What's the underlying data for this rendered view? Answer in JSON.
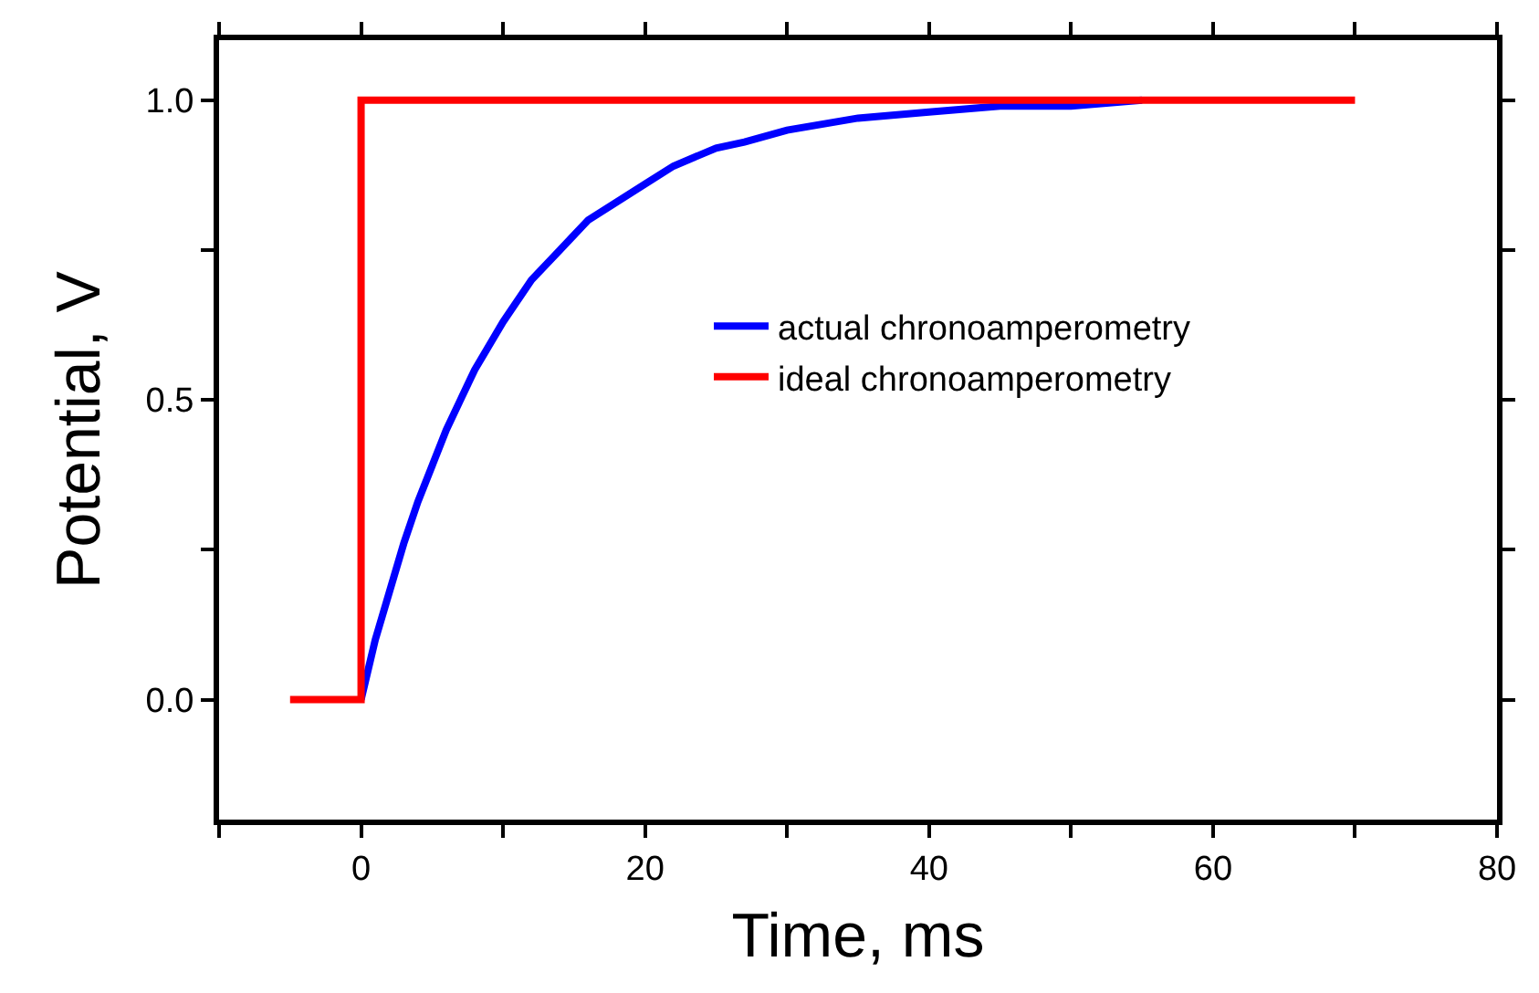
{
  "chart_data": {
    "type": "line",
    "xlabel": "Time, ms",
    "ylabel": "Potential, V",
    "xlim": [
      -10,
      80
    ],
    "ylim": [
      -0.2,
      1.1
    ],
    "xticks": [
      {
        "value": -10,
        "label": null
      },
      0,
      {
        "value": 10,
        "label": null
      },
      20,
      {
        "value": 30,
        "label": null
      },
      40,
      {
        "value": 50,
        "label": null
      },
      60,
      {
        "value": 70,
        "label": null
      },
      80
    ],
    "yticks": [
      {
        "value": 0,
        "label": "0.0"
      },
      {
        "value": 0.25,
        "label": null
      },
      0.5,
      {
        "value": 0.75,
        "label": null
      },
      {
        "value": 1,
        "label": "1.0"
      }
    ],
    "legend": "center",
    "line_style": "solid",
    "marker": "none",
    "series": [
      {
        "name": "actual chronoamperometry",
        "color": "#0000ff",
        "x": [
          0,
          1,
          2,
          3,
          4,
          5,
          6,
          7,
          8,
          9,
          10,
          12,
          14,
          16,
          18,
          20,
          22,
          25,
          27,
          30,
          35,
          40,
          45,
          50,
          55
        ],
        "values": [
          0,
          0.1,
          0.18,
          0.26,
          0.33,
          0.39,
          0.45,
          0.5,
          0.55,
          0.59,
          0.63,
          0.7,
          0.75,
          0.8,
          0.83,
          0.86,
          0.89,
          0.92,
          0.93,
          0.95,
          0.97,
          0.98,
          0.99,
          0.99,
          1.0
        ]
      },
      {
        "name": "ideal chronoamperometry",
        "color": "#ff0000",
        "x": [
          -5,
          0,
          0,
          70
        ],
        "values": [
          0,
          0,
          1,
          1
        ]
      }
    ]
  }
}
